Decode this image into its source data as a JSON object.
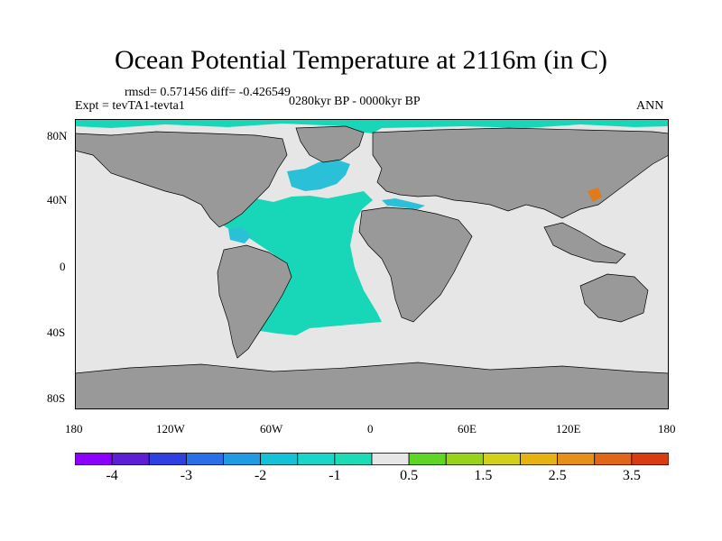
{
  "title": "Ocean Potential Temperature at 2116m (in C)",
  "stats": "rmsd= 0.571456  diff= -0.426549",
  "experiment": "Expt = tevTA1-tevta1",
  "period": "0280kyr BP - 0000kyr BP",
  "season": "ANN",
  "lat_ticks": [
    "80N",
    "40N",
    "0",
    "40S",
    "80S"
  ],
  "lon_ticks": [
    "180",
    "120W",
    "60W",
    "0",
    "60E",
    "120E",
    "180"
  ],
  "colorbar": {
    "colors": [
      "#8b00ff",
      "#5b1fd6",
      "#2f3fe0",
      "#2a6ee8",
      "#1e9be3",
      "#14c2d8",
      "#18d6c8",
      "#1cdcb6",
      "#e6e6e6",
      "#5fd624",
      "#9ad21a",
      "#d2d018",
      "#e6b212",
      "#e6901a",
      "#e0661a",
      "#d83c10"
    ],
    "labels": [
      "-4",
      "-3",
      "-2",
      "-1",
      "0.5",
      "1.5",
      "2.5",
      "3.5"
    ]
  },
  "map_colors": {
    "ocean_default": "#e6e6e6",
    "land": "#999999",
    "atlantic": "#18d6b8",
    "north_atlantic": "#2ac0d8",
    "warm_spot": "#e07a1a"
  }
}
